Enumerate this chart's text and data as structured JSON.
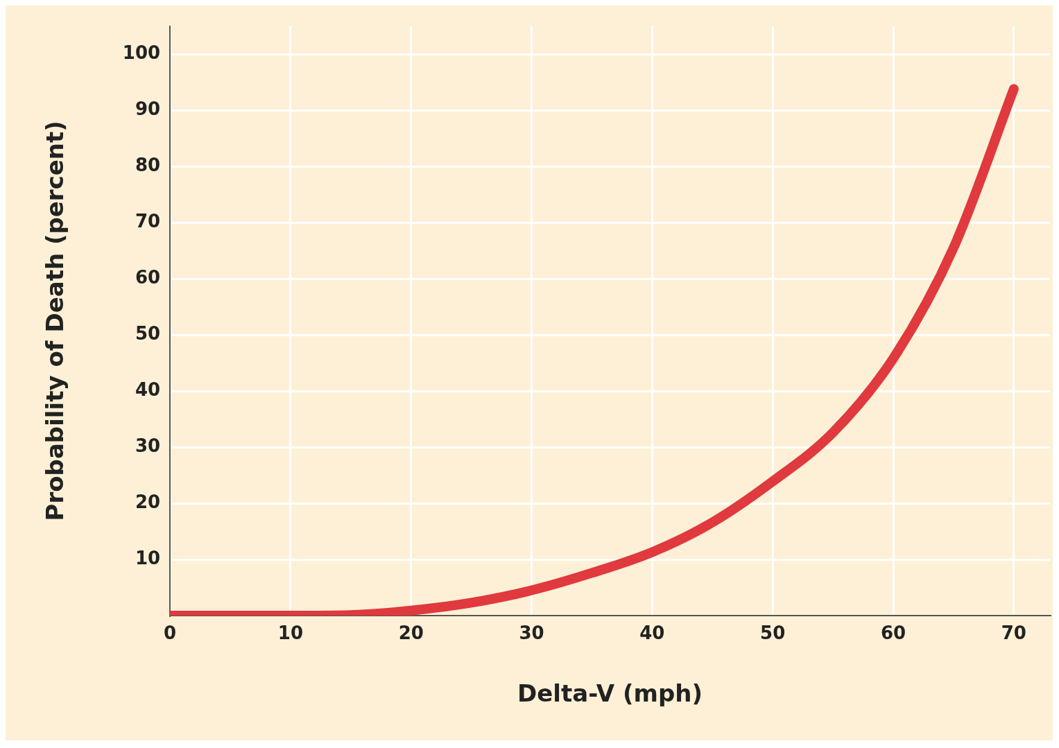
{
  "chart_data": {
    "type": "line",
    "xlabel": "Delta-V (mph)",
    "ylabel": "Probability of Death (percent)",
    "x": [
      0,
      5,
      10,
      15,
      20,
      25,
      30,
      35,
      40,
      45,
      50,
      55,
      60,
      65,
      70
    ],
    "series": [
      {
        "color": "#e0393e",
        "values": [
          0,
          0,
          0,
          0.1,
          0.9,
          2.3,
          4.5,
          7.6,
          11.3,
          16.6,
          23.9,
          32.6,
          45.8,
          65.5,
          93.8
        ]
      }
    ],
    "xlim": [
      0,
      73
    ],
    "xticks": [
      0,
      10,
      20,
      30,
      40,
      50,
      60,
      70
    ],
    "ylim": [
      0,
      105
    ],
    "yticks": [
      10,
      20,
      30,
      40,
      50,
      60,
      70,
      80,
      90,
      100
    ],
    "grid": true,
    "legend": false,
    "marker": "none",
    "line_style": "solid"
  }
}
